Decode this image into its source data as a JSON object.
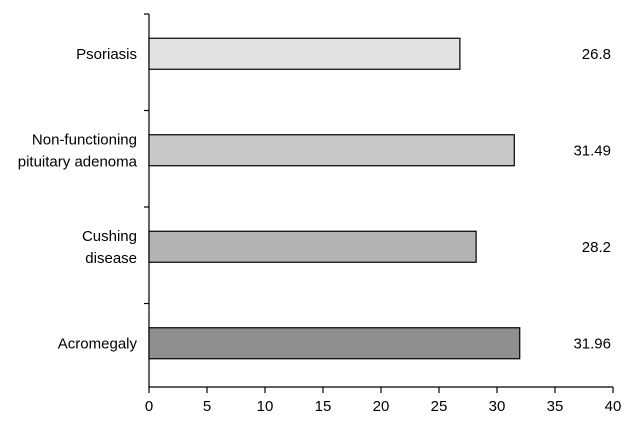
{
  "chart_data": {
    "type": "bar",
    "orientation": "horizontal",
    "categories": [
      [
        "Psoriasis"
      ],
      [
        "Non-functioning",
        "pituitary adenoma"
      ],
      [
        "Cushing",
        "disease"
      ],
      [
        "Acromegaly"
      ]
    ],
    "values": [
      26.8,
      31.49,
      28.2,
      31.96
    ],
    "value_labels": [
      "26.8",
      "31.49",
      "28.2",
      "31.96"
    ],
    "bar_colors": [
      "#e2e2e2",
      "#c9c9c9",
      "#b3b3b3",
      "#8f8f8f"
    ],
    "xlim": [
      0,
      40
    ],
    "xticks": [
      0,
      5,
      10,
      15,
      20,
      25,
      30,
      35,
      40
    ],
    "grid": false,
    "title": "",
    "xlabel": "",
    "ylabel": ""
  }
}
